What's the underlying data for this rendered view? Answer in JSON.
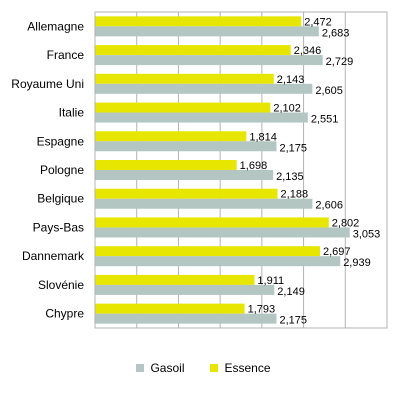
{
  "chart_data": {
    "type": "bar",
    "orientation": "horizontal",
    "categories": [
      "Allemagne",
      "France",
      "Royaume Uni",
      "Italie",
      "Espagne",
      "Pologne",
      "Belgique",
      "Pays-Bas",
      "Dannemark",
      "Slovénie",
      "Chypre"
    ],
    "series": [
      {
        "name": "Essence",
        "color": "#e6e600",
        "values": [
          2.472,
          2.346,
          2.143,
          2.102,
          1.814,
          1.698,
          2.188,
          2.802,
          2.697,
          1.911,
          1.793
        ],
        "labels": [
          "2,472",
          "2,346",
          "2,143",
          "2,102",
          "1,814",
          "1,698",
          "2,188",
          "2,802",
          "2,697",
          "1,911",
          "1,793"
        ]
      },
      {
        "name": "Gasoil",
        "color": "#b3c6c1",
        "values": [
          2.683,
          2.729,
          2.605,
          2.551,
          2.175,
          2.135,
          2.606,
          3.053,
          2.939,
          2.149,
          2.175
        ],
        "labels": [
          "2,683",
          "2,729",
          "2,605",
          "2,551",
          "2,175",
          "2,135",
          "2,606",
          "3,053",
          "2,939",
          "2,149",
          "2,175"
        ]
      }
    ],
    "xlim": [
      0,
      3.5
    ],
    "grid": true,
    "legend_position": "bottom",
    "legend_order": [
      "Gasoil",
      "Essence"
    ]
  }
}
